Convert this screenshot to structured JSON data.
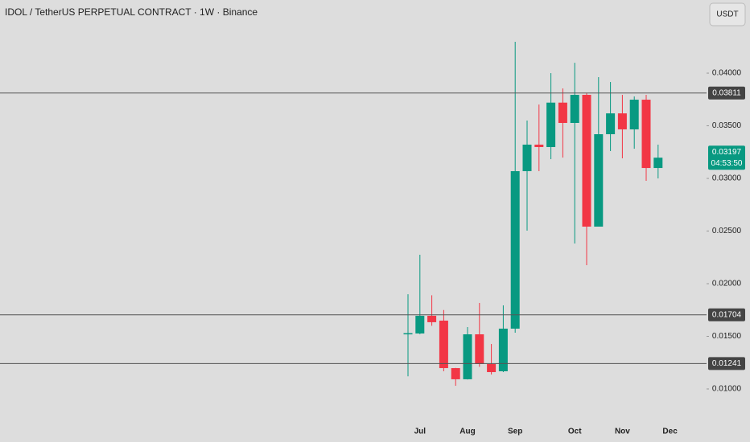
{
  "chart_data": {
    "type": "candlestick",
    "title": "IDOL / TetherUS PERPETUAL CONTRACT · 1W · Binance",
    "currency": "USDT",
    "categories": [
      null,
      "Jul",
      null,
      null,
      null,
      "Aug",
      null,
      null,
      null,
      "Sep",
      null,
      null,
      null,
      null,
      "Oct",
      null,
      null,
      null,
      "Nov",
      null,
      null,
      null,
      "Dec"
    ],
    "open": [
      0.0152,
      0.01527,
      0.01695,
      0.01649,
      0.01198,
      0.01092,
      0.01519,
      0.01237,
      0.01168,
      0.01573,
      0.03069,
      0.03321,
      0.03298,
      0.0372,
      0.03527,
      0.03794,
      0.02542,
      0.0342,
      0.03618,
      0.03466,
      0.03748,
      0.03099,
      null
    ],
    "high": [
      0.019,
      0.02275,
      0.0189,
      0.0175,
      0.012,
      0.01588,
      0.01817,
      0.01427,
      0.01794,
      0.04298,
      0.0355,
      0.03702,
      0.04,
      0.03855,
      0.04099,
      0.0381,
      0.03962,
      0.03916,
      0.03794,
      0.03779,
      0.03794,
      0.03321,
      null
    ],
    "low": [
      0.0112,
      0.0152,
      0.016,
      0.01168,
      0.0103,
      0.0109,
      0.0121,
      0.01137,
      0.0116,
      0.01534,
      0.02504,
      0.03069,
      0.03183,
      0.03198,
      0.02382,
      0.02176,
      0.02542,
      0.0326,
      0.03191,
      0.03282,
      0.02977,
      0.03,
      null
    ],
    "close": [
      0.0153,
      0.01695,
      0.01634,
      0.01198,
      0.01092,
      0.01519,
      0.01237,
      0.0116,
      0.01573,
      0.03069,
      0.03321,
      0.03298,
      0.0372,
      0.03527,
      0.03794,
      0.02542,
      0.0342,
      0.03618,
      0.03466,
      0.03748,
      0.03099,
      0.03197,
      null
    ],
    "up_color": "#089981",
    "down_color": "#f23645",
    "countdown": "04:53:50",
    "levels": [
      0.03811,
      0.01704,
      0.01241
    ],
    "ylim": [
      0.00725,
      0.04695
    ],
    "yticks": [
      {
        "value": 0.01,
        "label": "0.01000"
      },
      {
        "value": 0.015,
        "label": "0.01500"
      },
      {
        "value": 0.02,
        "label": "0.02000"
      },
      {
        "value": 0.025,
        "label": "0.02500"
      },
      {
        "value": 0.03,
        "label": "0.03000"
      },
      {
        "value": 0.035,
        "label": "0.03500"
      },
      {
        "value": 0.04,
        "label": "0.04000"
      }
    ]
  }
}
